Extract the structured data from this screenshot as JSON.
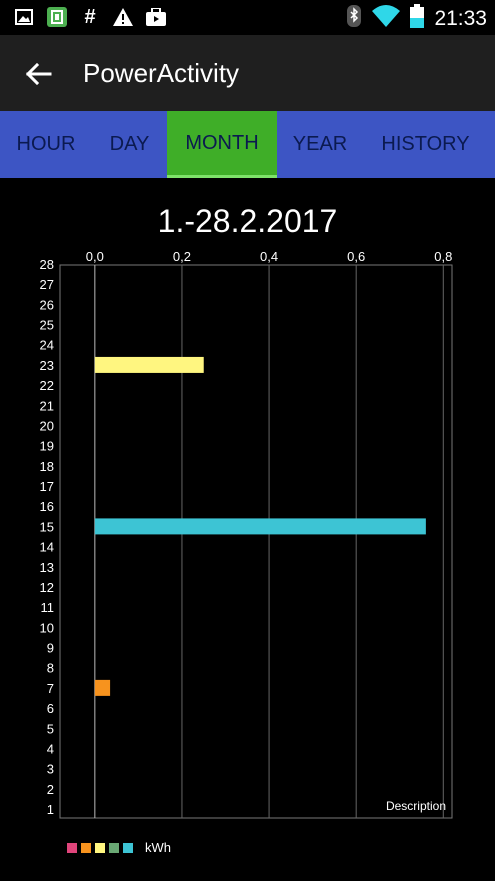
{
  "status_bar": {
    "time": "21:33",
    "left_icons": [
      "image-icon",
      "app-icon",
      "hash-icon",
      "warning-icon",
      "briefcase-icon"
    ],
    "right_icons": [
      "bluetooth-icon",
      "wifi-icon",
      "battery-icon"
    ],
    "hash_glyph": "#",
    "warning_glyph": "!"
  },
  "app_bar": {
    "title": "PowerActivity",
    "back_icon": "arrow-left-icon"
  },
  "tabs": [
    {
      "label": "HOUR",
      "active": false
    },
    {
      "label": "DAY",
      "active": false
    },
    {
      "label": "MONTH",
      "active": true
    },
    {
      "label": "YEAR",
      "active": false
    },
    {
      "label": "HISTORY",
      "active": false
    }
  ],
  "colors": {
    "tab_bar": "#3d55c4",
    "tab_active": "#3fae28",
    "bar_yellow": "#fff680",
    "bar_cyan": "#3dc4d4",
    "bar_orange": "#f7931e"
  },
  "chart_data": {
    "type": "bar",
    "orientation": "horizontal",
    "title": "1.-28.2.2017",
    "description": "Description",
    "categories": [
      "1",
      "2",
      "3",
      "4",
      "5",
      "6",
      "7",
      "8",
      "9",
      "10",
      "11",
      "12",
      "13",
      "14",
      "15",
      "16",
      "17",
      "18",
      "19",
      "20",
      "21",
      "22",
      "23",
      "24",
      "25",
      "26",
      "27",
      "28"
    ],
    "xlim": [
      -0.08,
      0.82
    ],
    "x_ticks": [
      0.0,
      0.2,
      0.4,
      0.6,
      0.8
    ],
    "x_tick_labels": [
      "0,0",
      "0,2",
      "0,4",
      "0,6",
      "0,8"
    ],
    "bars": [
      {
        "day": "7",
        "value": 0.035,
        "color": "#f7931e"
      },
      {
        "day": "15",
        "value": 0.76,
        "color": "#3dc4d4"
      },
      {
        "day": "23",
        "value": 0.25,
        "color": "#fff680"
      }
    ],
    "legend": {
      "colors": [
        "#e0457b",
        "#f7931e",
        "#fff680",
        "#6aa874",
        "#3dc4d4"
      ],
      "label": "kWh"
    },
    "grid": true
  }
}
